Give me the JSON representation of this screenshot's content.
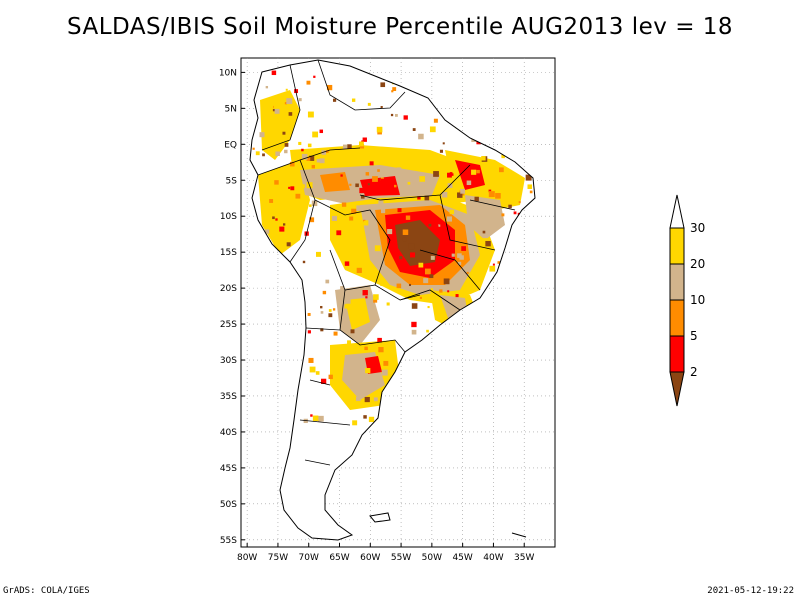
{
  "title": "SALDAS/IBIS Soil Moisture Percentile AUG2013 lev = 18",
  "footer": {
    "left": "GrADS: COLA/IGES",
    "right": "2021-05-12-19:22"
  },
  "axes": {
    "lat_labels": [
      "10N",
      "5N",
      "EQ",
      "5S",
      "10S",
      "15S",
      "20S",
      "25S",
      "30S",
      "35S",
      "40S",
      "45S",
      "50S",
      "55S"
    ],
    "lat_values": [
      10,
      5,
      0,
      -5,
      -10,
      -15,
      -20,
      -25,
      -30,
      -35,
      -40,
      -45,
      -50,
      -55
    ],
    "lon_labels": [
      "80W",
      "75W",
      "70W",
      "65W",
      "60W",
      "55W",
      "50W",
      "45W",
      "40W",
      "35W"
    ],
    "lon_values": [
      -80,
      -75,
      -70,
      -65,
      -60,
      -55,
      -50,
      -45,
      -40,
      -35
    ],
    "lon_range": [
      -81,
      -30
    ],
    "lat_range": [
      -56,
      12
    ]
  },
  "legend": {
    "labels": [
      "2",
      "5",
      "10",
      "20",
      "30"
    ],
    "colors": [
      "#8b4513",
      "#ff0000",
      "#ff8c00",
      "#d2b48c",
      "#ffd700",
      "#ffffff"
    ]
  }
}
